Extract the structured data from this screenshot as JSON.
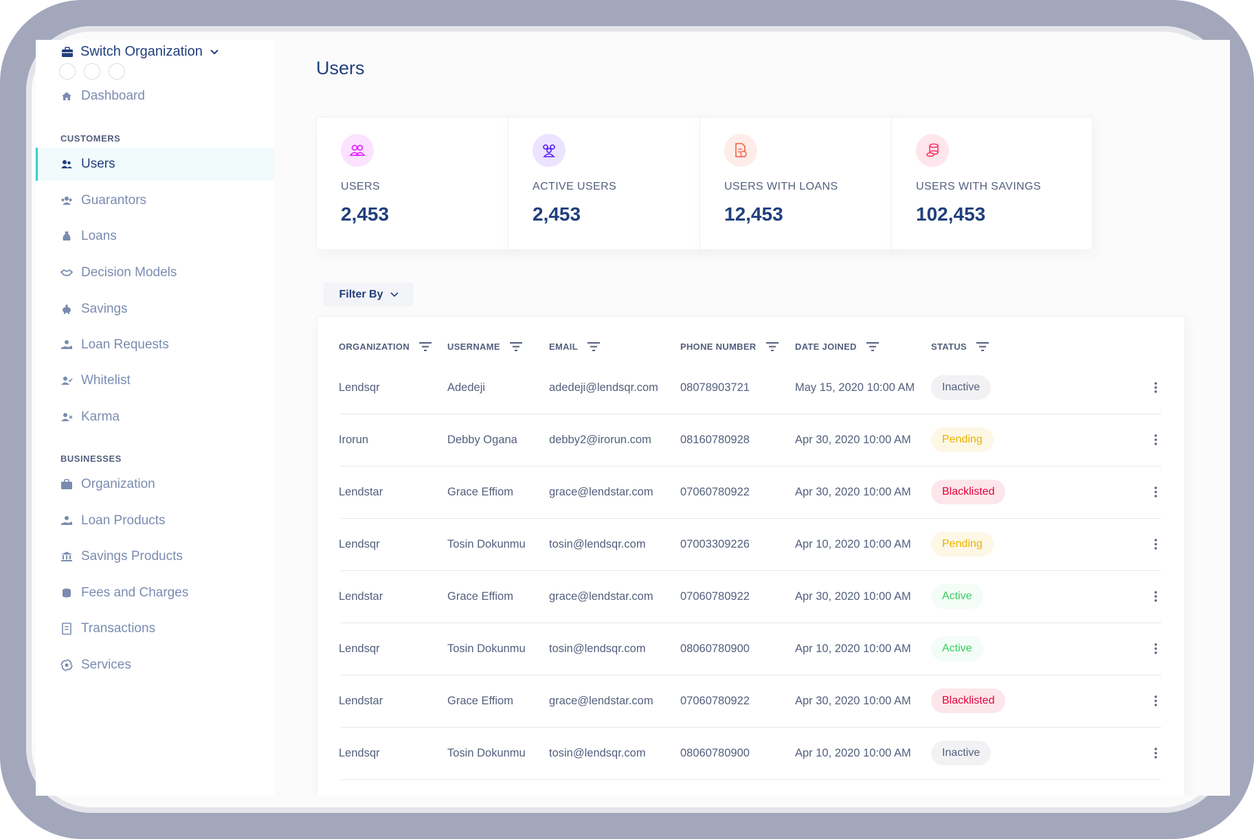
{
  "sidebar": {
    "switch_org": "Switch Organization",
    "dashboard": "Dashboard",
    "customers_label": "CUSTOMERS",
    "customers": [
      "Users",
      "Guarantors",
      "Loans",
      "Decision Models",
      "Savings",
      "Loan Requests",
      "Whitelist",
      "Karma"
    ],
    "businesses_label": "BUSINESSES",
    "businesses": [
      "Organization",
      "Loan Products",
      "Savings Products",
      "Fees and Charges",
      "Transactions",
      "Services"
    ]
  },
  "page": {
    "title": "Users"
  },
  "cards": [
    {
      "label": "USERS",
      "value": "2,453",
      "color": "#df18ff"
    },
    {
      "label": "ACTIVE USERS",
      "value": "2,453",
      "color": "#5718ff"
    },
    {
      "label": "USERS WITH LOANS",
      "value": "12,453",
      "color": "#f55f44"
    },
    {
      "label": "USERS WITH SAVINGS",
      "value": "102,453",
      "color": "#ff3366"
    }
  ],
  "filter": {
    "label": "Filter By"
  },
  "table": {
    "headers": [
      "ORGANIZATION",
      "USERNAME",
      "EMAIL",
      "PHONE NUMBER",
      "DATE JOINED",
      "STATUS"
    ],
    "rows": [
      {
        "org": "Lendsqr",
        "user": "Adedeji",
        "email": "adedeji@lendsqr.com",
        "phone": "08078903721",
        "date": "May 15, 2020 10:00 AM",
        "status": "Inactive"
      },
      {
        "org": "Irorun",
        "user": "Debby Ogana",
        "email": "debby2@irorun.com",
        "phone": "08160780928",
        "date": "Apr 30, 2020 10:00 AM",
        "status": "Pending"
      },
      {
        "org": "Lendstar",
        "user": "Grace Effiom",
        "email": "grace@lendstar.com",
        "phone": "07060780922",
        "date": "Apr 30, 2020 10:00 AM",
        "status": "Blacklisted"
      },
      {
        "org": "Lendsqr",
        "user": "Tosin Dokunmu",
        "email": "tosin@lendsqr.com",
        "phone": "07003309226",
        "date": "Apr 10, 2020 10:00 AM",
        "status": "Pending"
      },
      {
        "org": "Lendstar",
        "user": "Grace Effiom",
        "email": "grace@lendstar.com",
        "phone": "07060780922",
        "date": "Apr 30, 2020 10:00 AM",
        "status": "Active"
      },
      {
        "org": "Lendsqr",
        "user": "Tosin Dokunmu",
        "email": "tosin@lendsqr.com",
        "phone": "08060780900",
        "date": "Apr 10, 2020 10:00 AM",
        "status": "Active"
      },
      {
        "org": "Lendstar",
        "user": "Grace Effiom",
        "email": "grace@lendstar.com",
        "phone": "07060780922",
        "date": "Apr 30, 2020 10:00 AM",
        "status": "Blacklisted"
      },
      {
        "org": "Lendsqr",
        "user": "Tosin Dokunmu",
        "email": "tosin@lendsqr.com",
        "phone": "08060780900",
        "date": "Apr 10, 2020 10:00 AM",
        "status": "Inactive"
      }
    ]
  },
  "status_colors": {
    "Inactive": {
      "fg": "#545f7d",
      "bg": "#f2f2f4"
    },
    "Pending": {
      "fg": "#e9b200",
      "bg": "#fdf7e5"
    },
    "Blacklisted": {
      "fg": "#e4033b",
      "bg": "#fce6eb"
    },
    "Active": {
      "fg": "#39cd62",
      "bg": "#f3fcf6"
    }
  }
}
